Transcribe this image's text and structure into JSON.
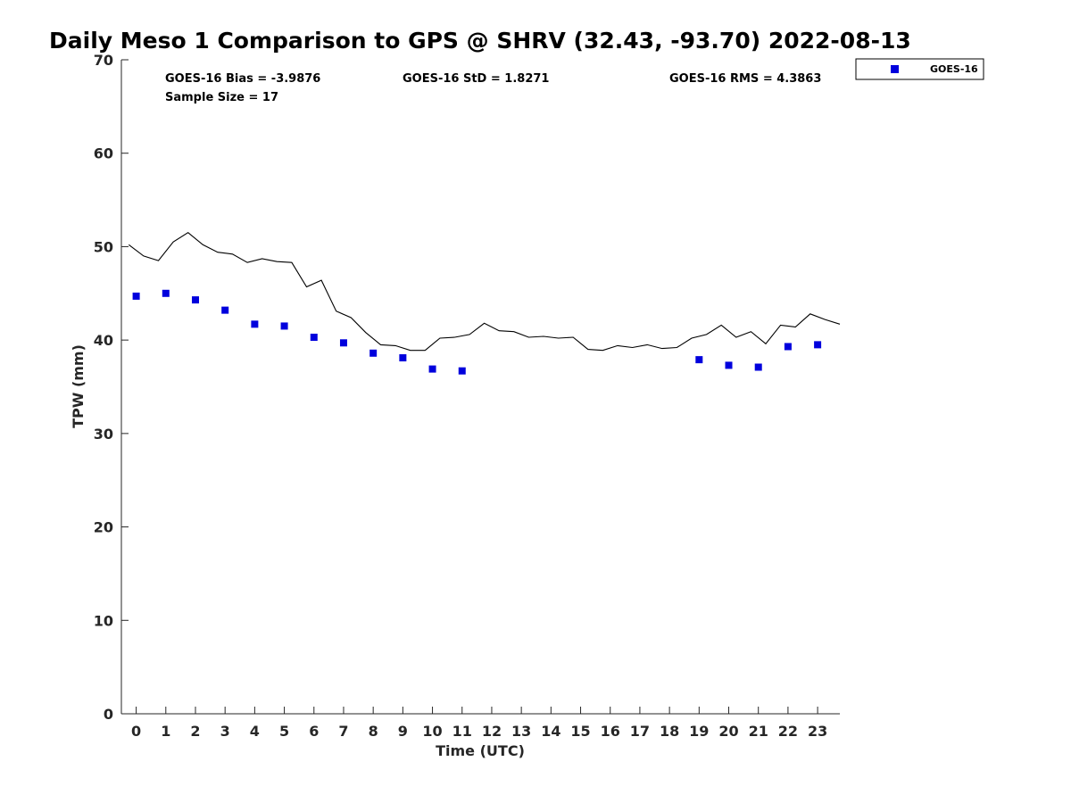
{
  "chart_data": {
    "type": "scatter",
    "title": "Daily Meso 1 Comparison to GPS @ SHRV (32.43, -93.70) 2022-08-13",
    "xlabel": "Time (UTC)",
    "ylabel": "TPW (mm)",
    "xlim": [
      -0.5,
      23.75
    ],
    "ylim": [
      0,
      70
    ],
    "x_ticks": [
      0,
      1,
      2,
      3,
      4,
      5,
      6,
      7,
      8,
      9,
      10,
      11,
      12,
      13,
      14,
      15,
      16,
      17,
      18,
      19,
      20,
      21,
      22,
      23
    ],
    "y_ticks": [
      0,
      10,
      20,
      30,
      40,
      50,
      60,
      70
    ],
    "grid": false,
    "legend_position": "top-right, outside plot area",
    "stats": {
      "bias": "GOES-16 Bias = -3.9876",
      "std": "GOES-16 StD = 1.8271",
      "rms": "GOES-16 RMS = 4.3863",
      "sample": "Sample Size = 17"
    },
    "series": [
      {
        "name": "GOES-16",
        "style": "square-marker",
        "color": "#0000dd",
        "points": [
          [
            0,
            44.7
          ],
          [
            1,
            45.0
          ],
          [
            2,
            44.3
          ],
          [
            3,
            43.2
          ],
          [
            4,
            41.7
          ],
          [
            5,
            41.5
          ],
          [
            6,
            40.3
          ],
          [
            7,
            39.7
          ],
          [
            8,
            38.6
          ],
          [
            9,
            38.1
          ],
          [
            10,
            36.9
          ],
          [
            11,
            36.7
          ],
          [
            19,
            37.9
          ],
          [
            20,
            37.3
          ],
          [
            21,
            37.1
          ],
          [
            22,
            39.3
          ],
          [
            23,
            39.5
          ]
        ]
      },
      {
        "style": "line",
        "color": "#000000",
        "points": [
          [
            -0.25,
            50.2
          ],
          [
            0.25,
            49.0
          ],
          [
            0.75,
            48.5
          ],
          [
            1.25,
            50.5
          ],
          [
            1.75,
            51.5
          ],
          [
            2.25,
            50.2
          ],
          [
            2.75,
            49.4
          ],
          [
            3.25,
            49.2
          ],
          [
            3.75,
            48.3
          ],
          [
            4.25,
            48.7
          ],
          [
            4.75,
            48.4
          ],
          [
            5.25,
            48.3
          ],
          [
            5.75,
            45.7
          ],
          [
            6.25,
            46.4
          ],
          [
            6.75,
            43.1
          ],
          [
            7.25,
            42.4
          ],
          [
            7.75,
            40.8
          ],
          [
            8.25,
            39.5
          ],
          [
            8.75,
            39.4
          ],
          [
            9.25,
            38.9
          ],
          [
            9.75,
            38.9
          ],
          [
            10.25,
            40.2
          ],
          [
            10.75,
            40.3
          ],
          [
            11.25,
            40.6
          ],
          [
            11.75,
            41.8
          ],
          [
            12.25,
            41.0
          ],
          [
            12.75,
            40.9
          ],
          [
            13.25,
            40.3
          ],
          [
            13.75,
            40.4
          ],
          [
            14.25,
            40.2
          ],
          [
            14.75,
            40.3
          ],
          [
            15.25,
            39.0
          ],
          [
            15.75,
            38.9
          ],
          [
            16.25,
            39.4
          ],
          [
            16.75,
            39.2
          ],
          [
            17.25,
            39.5
          ],
          [
            17.75,
            39.1
          ],
          [
            18.25,
            39.2
          ],
          [
            18.75,
            40.2
          ],
          [
            19.25,
            40.6
          ],
          [
            19.75,
            41.6
          ],
          [
            20.25,
            40.3
          ],
          [
            20.75,
            40.9
          ],
          [
            21.25,
            39.6
          ],
          [
            21.75,
            41.6
          ],
          [
            22.25,
            41.4
          ],
          [
            22.75,
            42.8
          ],
          [
            23.25,
            42.2
          ],
          [
            23.75,
            41.7
          ]
        ]
      }
    ]
  }
}
